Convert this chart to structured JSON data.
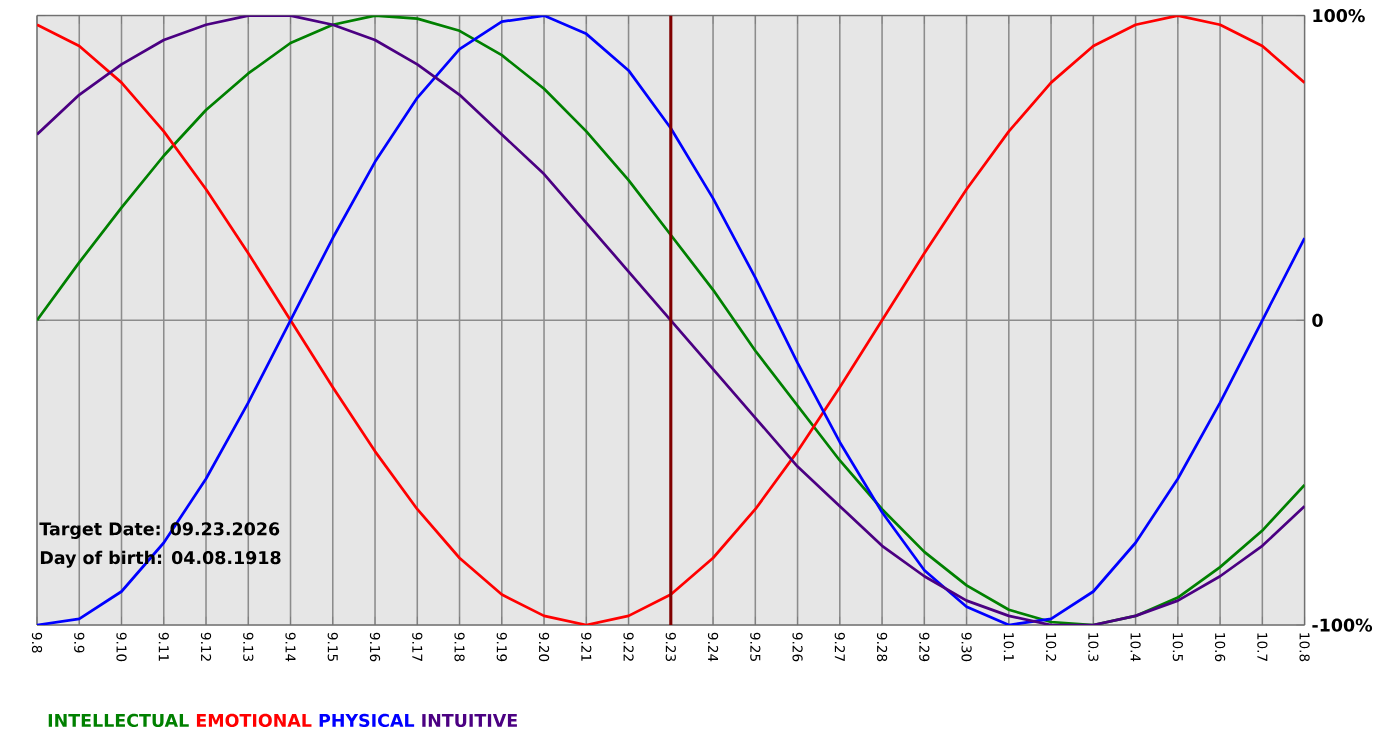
{
  "chart_data": {
    "type": "line",
    "categories": [
      "9.8",
      "9.9",
      "9.10",
      "9.11",
      "9.12",
      "9.13",
      "9.14",
      "9.15",
      "9.16",
      "9.17",
      "9.18",
      "9.19",
      "9.20",
      "9.21",
      "9.22",
      "9.23",
      "9.24",
      "9.25",
      "9.26",
      "9.27",
      "9.28",
      "9.29",
      "9.30",
      "10.1",
      "10.2",
      "10.3",
      "10.4",
      "10.5",
      "10.6",
      "10.7",
      "10.8"
    ],
    "series": [
      {
        "name": "INTELLECTUAL",
        "color": "#008000",
        "values": [
          0,
          19,
          37,
          54,
          69,
          81,
          91,
          97,
          100,
          99,
          95,
          87,
          76,
          62,
          46,
          28,
          10,
          -10,
          -28,
          -46,
          -62,
          -76,
          -87,
          -95,
          -99,
          -100,
          -97,
          -91,
          -81,
          -69,
          -54
        ]
      },
      {
        "name": "EMOTIONAL",
        "color": "#ff0000",
        "values": [
          97,
          90,
          78,
          62,
          43,
          22,
          0,
          -22,
          -43,
          -62,
          -78,
          -90,
          -97,
          -100,
          -97,
          -90,
          -78,
          -62,
          -43,
          -22,
          0,
          22,
          43,
          62,
          78,
          90,
          97,
          100,
          97,
          90,
          78
        ]
      },
      {
        "name": "PHYSICAL",
        "color": "#0000ff",
        "values": [
          -100,
          -98,
          -89,
          -73,
          -52,
          -27,
          0,
          27,
          52,
          73,
          89,
          98,
          100,
          94,
          82,
          63,
          40,
          14,
          -14,
          -40,
          -63,
          -82,
          -94,
          -100,
          -98,
          -89,
          -73,
          -52,
          -27,
          0,
          27
        ]
      },
      {
        "name": "INTUITIVE",
        "color": "#4b0082",
        "values": [
          61,
          74,
          84,
          92,
          97,
          100,
          100,
          97,
          92,
          84,
          74,
          61,
          48,
          32,
          16,
          0,
          -16,
          -32,
          -48,
          -61,
          -74,
          -84,
          -92,
          -97,
          -100,
          -100,
          -97,
          -92,
          -84,
          -74,
          -61
        ]
      }
    ],
    "ylim": [
      -100,
      100
    ],
    "yticks": [
      {
        "value": 100,
        "label": "100%"
      },
      0,
      {
        "value": -100,
        "label": "-100%"
      }
    ],
    "grid": true,
    "legend": "bottom",
    "ref_lines": [
      {
        "axis": "x",
        "value": "9.23",
        "color": "#800000"
      }
    ],
    "annotations": [
      "Target Date: 09.23.2026",
      "Day of birth: 04.08.1918"
    ]
  }
}
